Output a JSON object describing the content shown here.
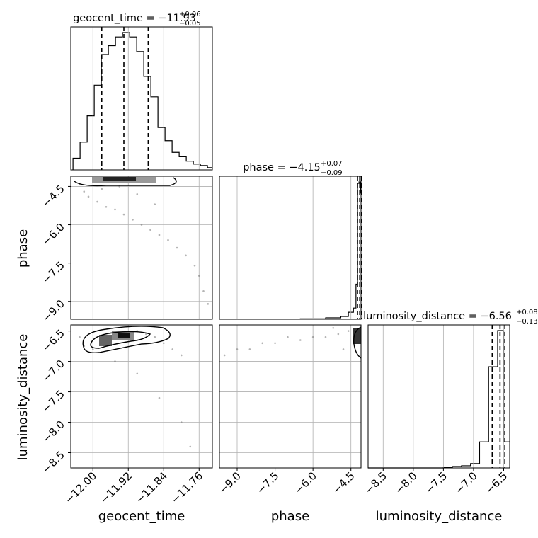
{
  "chart_data": [
    {
      "type": "histogram",
      "panel": "geocent_time",
      "title": {
        "base": "geocent_time = −11.93",
        "plus": "+0.06",
        "minus": "−0.05"
      },
      "x": {
        "label": "geocent_time",
        "ticks": [
          -12.0,
          -11.92,
          -11.84,
          -11.76
        ],
        "tick_labels": [
          "−12.00",
          "−11.92",
          "−11.84",
          "−11.76"
        ],
        "range": [
          -12.05,
          -11.73
        ]
      },
      "bins": [
        -12.045,
        -12.029,
        -12.013,
        -11.997,
        -11.981,
        -11.965,
        -11.949,
        -11.933,
        -11.917,
        -11.901,
        -11.885,
        -11.869,
        -11.853,
        -11.837,
        -11.821,
        -11.805,
        -11.789,
        -11.773,
        -11.757,
        -11.741
      ],
      "counts": [
        0.08,
        0.19,
        0.37,
        0.58,
        0.79,
        0.85,
        0.91,
        0.94,
        0.91,
        0.81,
        0.64,
        0.5,
        0.29,
        0.2,
        0.12,
        0.09,
        0.06,
        0.04,
        0.03,
        0.015
      ],
      "quantiles": [
        -11.98,
        -11.93,
        -11.875
      ]
    },
    {
      "type": "histogram",
      "panel": "phase",
      "title": {
        "base": "phase = −4.15",
        "plus": "+0.07",
        "minus": "−0.09"
      },
      "x": {
        "label": "phase",
        "ticks": [
          -9.0,
          -7.5,
          -6.0,
          -4.5
        ],
        "tick_labels": [
          "−9.0",
          "−7.5",
          "−6.0",
          "−4.5"
        ],
        "range": [
          -9.7,
          -4.1
        ]
      },
      "bins": [
        -6.5,
        -5.5,
        -4.9,
        -4.6,
        -4.4,
        -4.3,
        -4.24,
        -4.18,
        -4.12
      ],
      "counts": [
        0.003,
        0.01,
        0.02,
        0.05,
        0.08,
        0.25,
        0.97,
        0.98,
        0.9
      ],
      "quantiles": [
        -4.24,
        -4.15,
        -4.08
      ]
    },
    {
      "type": "histogram",
      "panel": "luminosity_distance",
      "title": {
        "base": "luminosity_distance = −6.56",
        "plus": "+0.08",
        "minus": "−0.13"
      },
      "x": {
        "label": "luminosity_distance",
        "ticks": [
          -8.5,
          -8.0,
          -7.5,
          -7.0,
          -6.5
        ],
        "tick_labels": [
          "−8.5",
          "−8.0",
          "−7.5",
          "−7.0",
          "−6.5"
        ],
        "range": [
          -8.75,
          -6.4
        ]
      },
      "bins": [
        -8.75,
        -7.5,
        -7.35,
        -7.2,
        -7.05,
        -6.9,
        -6.75,
        -6.6,
        -6.5
      ],
      "counts": [
        0.0,
        0.005,
        0.01,
        0.015,
        0.03,
        0.18,
        0.7,
        0.95,
        0.18
      ],
      "quantiles": [
        -6.69,
        -6.56,
        -6.48
      ]
    },
    {
      "type": "scatter",
      "panel": "phase vs geocent_time",
      "x": {
        "label": "geocent_time",
        "range": [
          -12.05,
          -11.73
        ]
      },
      "y": {
        "label": "phase",
        "ticks": [
          -4.5,
          -6.0,
          -7.5,
          -9.0
        ],
        "tick_labels": [
          "−4.5",
          "−6.0",
          "−7.5",
          "−9.0"
        ],
        "range": [
          -9.7,
          -4.1
        ]
      },
      "points": [
        [
          -12.02,
          -4.7
        ],
        [
          -12.01,
          -4.9
        ],
        [
          -11.99,
          -5.1
        ],
        [
          -11.97,
          -5.3
        ],
        [
          -11.95,
          -5.4
        ],
        [
          -11.93,
          -5.6
        ],
        [
          -11.91,
          -5.8
        ],
        [
          -11.89,
          -6.0
        ],
        [
          -11.87,
          -6.2
        ],
        [
          -11.85,
          -6.4
        ],
        [
          -11.83,
          -6.6
        ],
        [
          -11.81,
          -6.9
        ],
        [
          -11.79,
          -7.2
        ],
        [
          -11.77,
          -7.6
        ],
        [
          -11.76,
          -8.0
        ],
        [
          -11.75,
          -8.6
        ],
        [
          -11.74,
          -9.1
        ],
        [
          -12.03,
          -4.4
        ],
        [
          -11.98,
          -4.6
        ],
        [
          -11.94,
          -4.5
        ],
        [
          -11.9,
          -4.8
        ],
        [
          -11.86,
          -5.2
        ]
      ]
    },
    {
      "type": "scatter",
      "panel": "luminosity_distance vs geocent_time",
      "x": {
        "label": "geocent_time",
        "range": [
          -12.05,
          -11.73
        ]
      },
      "y": {
        "label": "luminosity_distance",
        "ticks": [
          -6.5,
          -7.0,
          -7.5,
          -8.0,
          -8.5
        ],
        "tick_labels": [
          "−6.5",
          "−7.0",
          "−7.5",
          "−8.0",
          "−8.5"
        ],
        "range": [
          -8.75,
          -6.4
        ]
      },
      "points": [
        [
          -12.02,
          -6.75
        ],
        [
          -12.0,
          -6.8
        ],
        [
          -11.98,
          -6.7
        ],
        [
          -11.96,
          -6.6
        ],
        [
          -11.94,
          -6.55
        ],
        [
          -11.92,
          -6.55
        ],
        [
          -11.9,
          -6.5
        ],
        [
          -11.88,
          -6.55
        ],
        [
          -11.86,
          -6.6
        ],
        [
          -11.84,
          -6.7
        ],
        [
          -11.82,
          -6.8
        ],
        [
          -11.8,
          -6.9
        ],
        [
          -11.9,
          -7.2
        ],
        [
          -11.85,
          -7.6
        ],
        [
          -11.8,
          -8.0
        ],
        [
          -11.78,
          -8.4
        ],
        [
          -11.95,
          -7.0
        ],
        [
          -12.03,
          -6.6
        ]
      ]
    },
    {
      "type": "scatter",
      "panel": "luminosity_distance vs phase",
      "x": {
        "label": "phase",
        "range": [
          -9.7,
          -4.1
        ]
      },
      "y": {
        "label": "luminosity_distance",
        "range": [
          -8.75,
          -6.4
        ]
      },
      "points": [
        [
          -4.2,
          -6.55
        ],
        [
          -4.3,
          -6.6
        ],
        [
          -4.6,
          -6.5
        ],
        [
          -5.0,
          -6.55
        ],
        [
          -5.5,
          -6.6
        ],
        [
          -6.0,
          -6.6
        ],
        [
          -6.5,
          -6.65
        ],
        [
          -7.0,
          -6.6
        ],
        [
          -7.5,
          -6.7
        ],
        [
          -8.0,
          -6.7
        ],
        [
          -8.5,
          -6.8
        ],
        [
          -9.0,
          -6.8
        ],
        [
          -9.5,
          -6.9
        ],
        [
          -5.2,
          -6.45
        ],
        [
          -4.8,
          -6.8
        ]
      ]
    }
  ]
}
